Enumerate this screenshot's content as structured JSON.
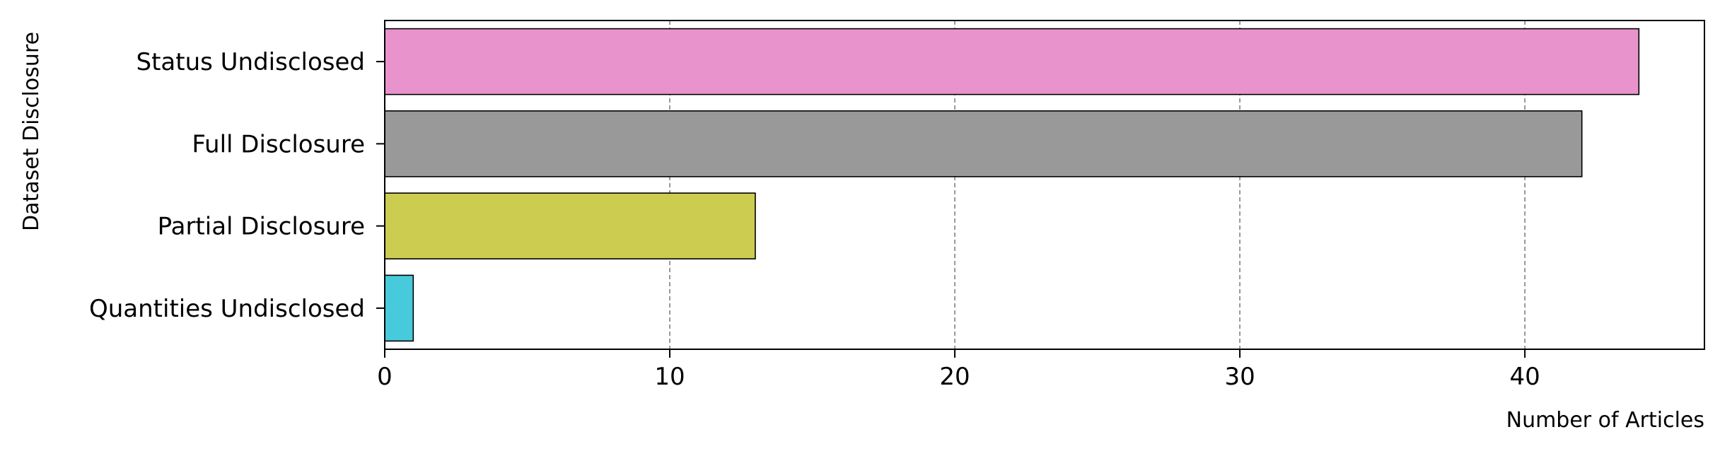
{
  "chart_data": {
    "type": "bar",
    "orientation": "horizontal",
    "title": "",
    "xlabel": "Number of Articles",
    "ylabel": "Dataset Disclosure",
    "categories": [
      "Status Undisclosed",
      "Full Disclosure",
      "Partial Disclosure",
      "Quantities Undisclosed"
    ],
    "values": [
      44,
      42,
      13,
      1
    ],
    "colors": [
      "#e993cc",
      "#999999",
      "#cccc50",
      "#47cadb"
    ],
    "xlim": [
      0,
      46.3
    ],
    "xticks": [
      0,
      10,
      20,
      30,
      40
    ],
    "grid": "x-dashed"
  }
}
